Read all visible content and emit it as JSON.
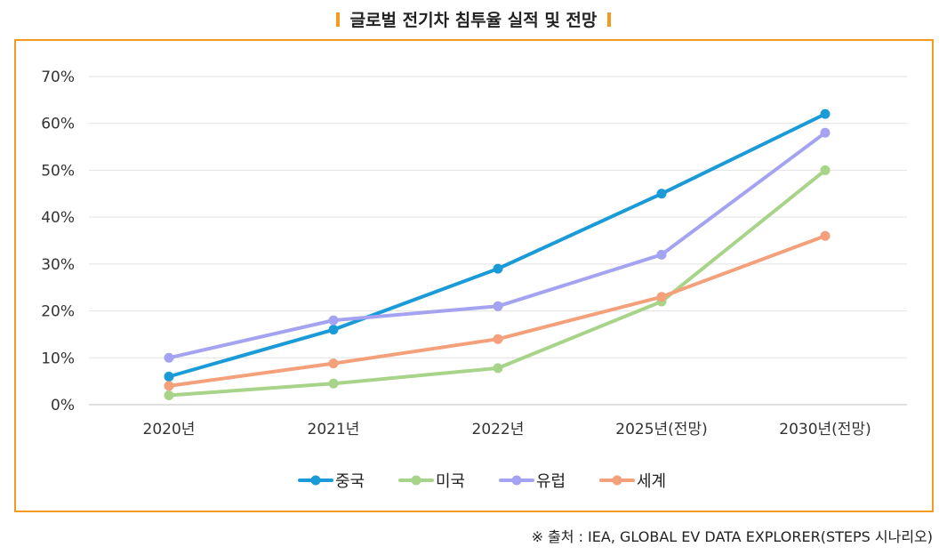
{
  "title": "글로벌 전기차 침투율 실적 및 전망",
  "source": "※ 출처 : IEA, GLOBAL EV DATA EXPLORER(STEPS 시나리오)",
  "chart_data": {
    "type": "line",
    "title": "글로벌 전기차 침투율 실적 및 전망",
    "xlabel": "",
    "ylabel": "",
    "categories": [
      "2020년",
      "2021년",
      "2022년",
      "2025년(전망)",
      "2030년(전망)"
    ],
    "y_ticks": [
      "0%",
      "10%",
      "20%",
      "30%",
      "40%",
      "50%",
      "60%",
      "70%"
    ],
    "ylim": [
      0,
      70
    ],
    "grid": true,
    "legend_position": "bottom",
    "series": [
      {
        "name": "중국",
        "color": "#1a9bd7",
        "values": [
          6,
          16,
          29,
          45,
          62
        ]
      },
      {
        "name": "미국",
        "color": "#a8d48a",
        "values": [
          2,
          4.5,
          7.8,
          22,
          50
        ]
      },
      {
        "name": "유럽",
        "color": "#a3a3f2",
        "values": [
          10,
          18,
          21,
          32,
          58
        ]
      },
      {
        "name": "세계",
        "color": "#f4a07a",
        "values": [
          4,
          8.8,
          14,
          23,
          36
        ]
      }
    ]
  }
}
